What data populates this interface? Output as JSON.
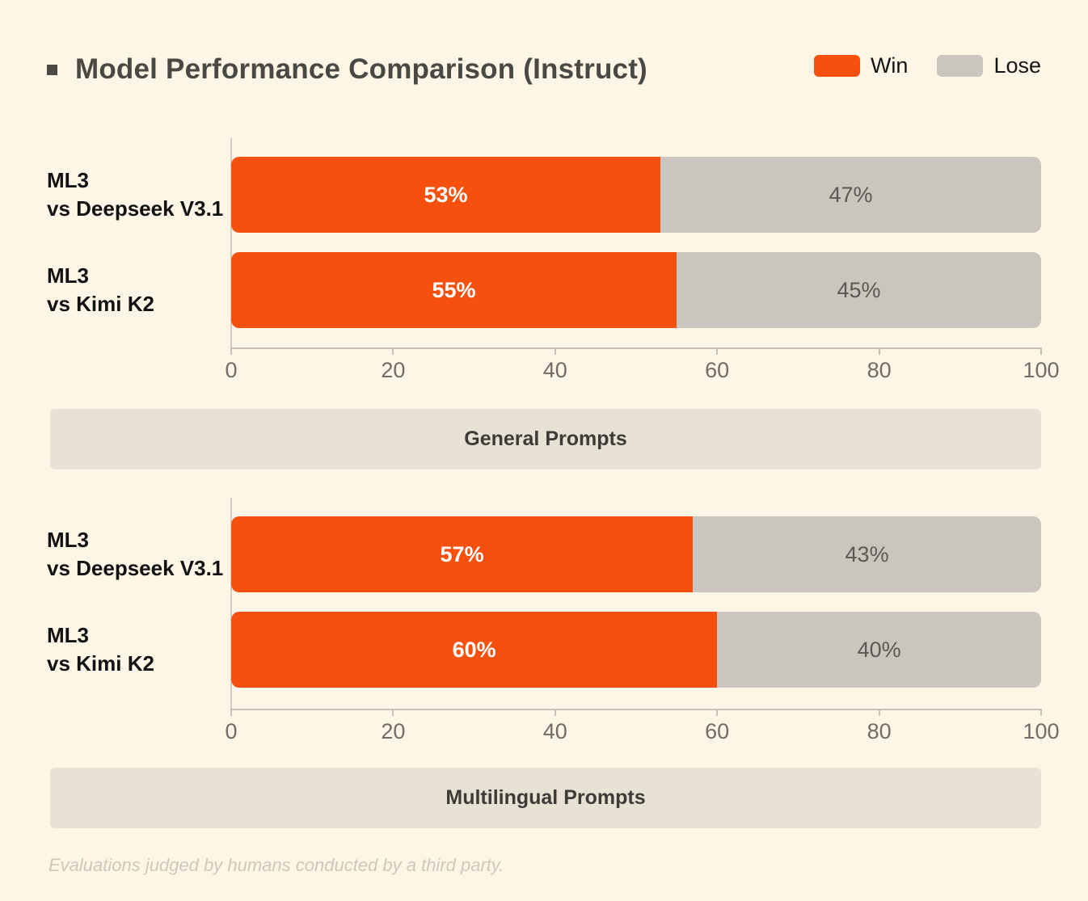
{
  "header": {
    "title": "Model Performance Comparison (Instruct)",
    "legend": {
      "win_label": "Win",
      "lose_label": "Lose"
    }
  },
  "colors": {
    "background": "#FDF5E5",
    "win": "#F6500F",
    "lose": "#CBC5BF",
    "band": "#E8E2D5",
    "title_text": "#4A4843",
    "axis_line": "#C8C2B6",
    "tick_text": "#6F6D66",
    "footer_text": "#D0C7BA"
  },
  "chart_data": [
    {
      "type": "bar",
      "orientation": "horizontal",
      "stacked": true,
      "section_label": "General Prompts",
      "categories": [
        "ML3 vs Deepseek V3.1",
        "ML3 vs Kimi K2"
      ],
      "series": [
        {
          "name": "Win",
          "values": [
            53,
            55
          ],
          "color": "#F6500F"
        },
        {
          "name": "Lose",
          "values": [
            47,
            45
          ],
          "color": "#CBC5BF"
        }
      ],
      "xlim": [
        0,
        100
      ],
      "xticks": [
        0,
        20,
        40,
        60,
        80,
        100
      ],
      "legend_position": "top-right",
      "grid": false
    },
    {
      "type": "bar",
      "orientation": "horizontal",
      "stacked": true,
      "section_label": "Multilingual Prompts",
      "categories": [
        "ML3 vs Deepseek V3.1",
        "ML3 vs Kimi K2"
      ],
      "series": [
        {
          "name": "Win",
          "values": [
            57,
            60
          ],
          "color": "#F6500F"
        },
        {
          "name": "Lose",
          "values": [
            43,
            40
          ],
          "color": "#CBC5BF"
        }
      ],
      "xlim": [
        0,
        100
      ],
      "xticks": [
        0,
        20,
        40,
        60,
        80,
        100
      ],
      "legend_position": "top-right",
      "grid": false
    }
  ],
  "sections": [
    {
      "band_label": "General Prompts",
      "rows": [
        {
          "label_line1": "ML3",
          "label_line2": "vs Deepseek V3.1",
          "win": 53,
          "lose": 47,
          "win_label": "53%",
          "lose_label": "47%"
        },
        {
          "label_line1": "ML3",
          "label_line2": "vs Kimi K2",
          "win": 55,
          "lose": 45,
          "win_label": "55%",
          "lose_label": "45%"
        }
      ],
      "ticks": [
        "0",
        "20",
        "40",
        "60",
        "80",
        "100"
      ]
    },
    {
      "band_label": "Multilingual Prompts",
      "rows": [
        {
          "label_line1": "ML3",
          "label_line2": "vs Deepseek V3.1",
          "win": 57,
          "lose": 43,
          "win_label": "57%",
          "lose_label": "43%"
        },
        {
          "label_line1": "ML3",
          "label_line2": "vs Kimi K2",
          "win": 60,
          "lose": 40,
          "win_label": "60%",
          "lose_label": "40%"
        }
      ],
      "ticks": [
        "0",
        "20",
        "40",
        "60",
        "80",
        "100"
      ]
    }
  ],
  "footer": {
    "note": "Evaluations judged by humans conducted by a third party."
  }
}
